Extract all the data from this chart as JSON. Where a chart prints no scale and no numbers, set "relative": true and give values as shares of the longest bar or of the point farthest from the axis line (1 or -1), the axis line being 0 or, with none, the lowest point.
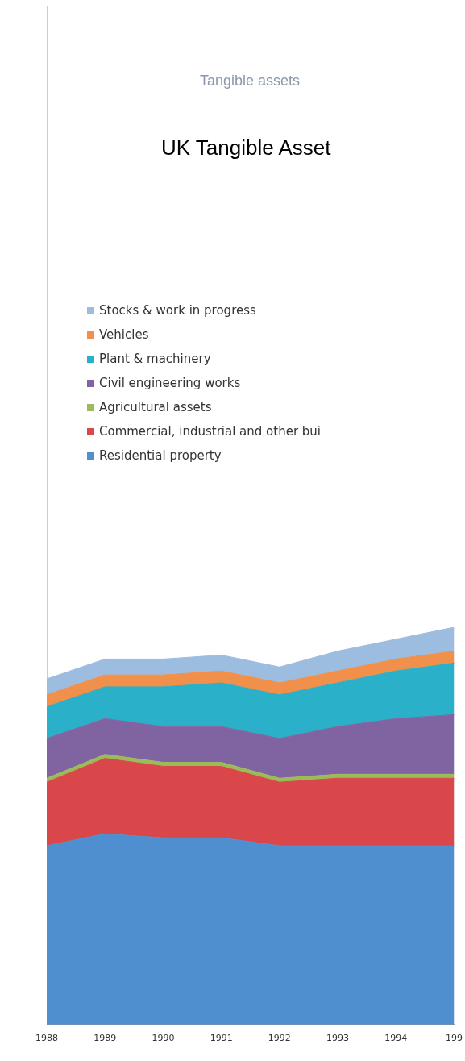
{
  "chart_data": {
    "type": "area",
    "title": "UK Tangible Asset",
    "subtitle": "Tangible assets",
    "relative": true,
    "stacked": true,
    "legend": "top left",
    "categories": [
      "1988",
      "1989",
      "1990",
      "1991",
      "1992",
      "1993",
      "1994",
      "199"
    ],
    "series": [
      {
        "name": "Residential property",
        "color": "#4f8fcf",
        "values": [
          0.45,
          0.48,
          0.47,
          0.47,
          0.45,
          0.45,
          0.45,
          0.45
        ]
      },
      {
        "name": "Commercial, industrial and other bui",
        "color": "#d9474a",
        "values": [
          0.16,
          0.19,
          0.18,
          0.18,
          0.16,
          0.17,
          0.17,
          0.17
        ]
      },
      {
        "name": "Agricultural assets",
        "color": "#9bbb59",
        "values": [
          0.01,
          0.01,
          0.01,
          0.01,
          0.01,
          0.01,
          0.01,
          0.01
        ]
      },
      {
        "name": "Civil engineering works",
        "color": "#8064a2",
        "values": [
          0.1,
          0.09,
          0.09,
          0.09,
          0.1,
          0.12,
          0.14,
          0.15
        ]
      },
      {
        "name": "Plant & machinery",
        "color": "#2ab0c8",
        "values": [
          0.08,
          0.08,
          0.1,
          0.11,
          0.11,
          0.11,
          0.12,
          0.13
        ]
      },
      {
        "name": "Vehicles",
        "color": "#f0904a",
        "values": [
          0.03,
          0.03,
          0.03,
          0.03,
          0.03,
          0.03,
          0.03,
          0.03
        ]
      },
      {
        "name": "Stocks & work in progress",
        "color": "#9dbde0",
        "values": [
          0.04,
          0.04,
          0.04,
          0.04,
          0.04,
          0.05,
          0.05,
          0.06
        ]
      }
    ]
  }
}
